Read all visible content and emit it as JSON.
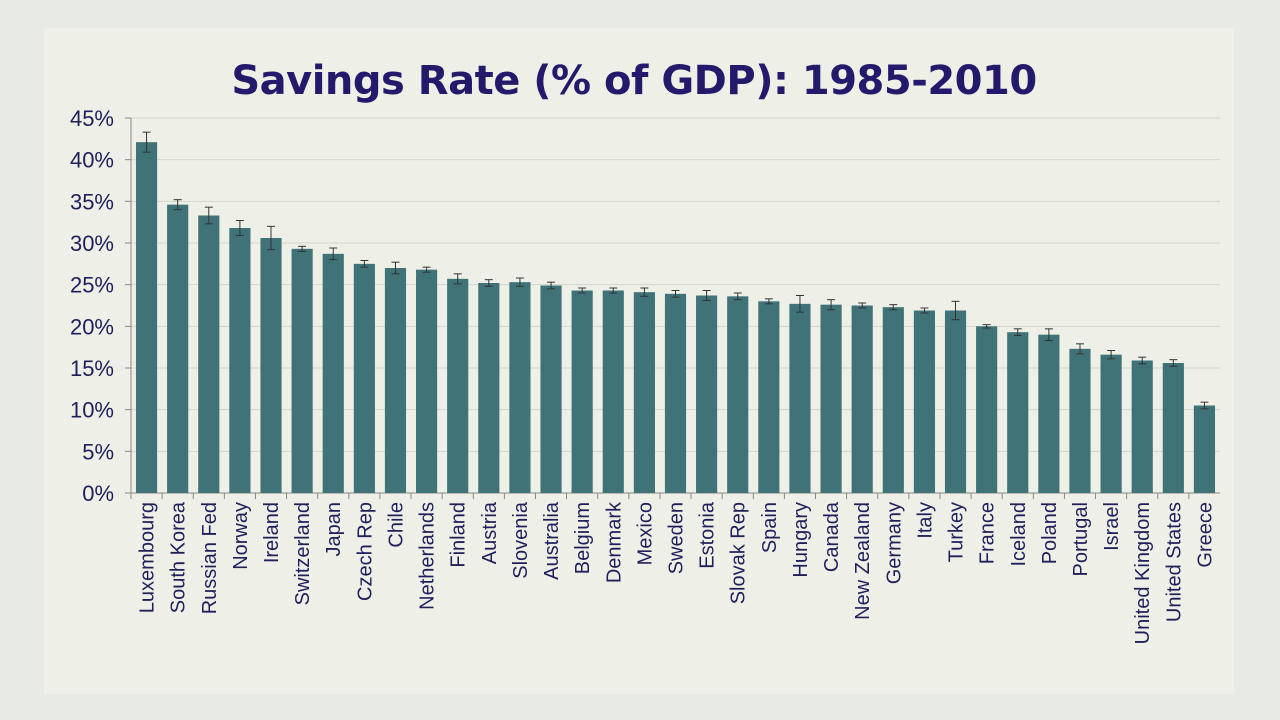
{
  "title": "Savings Rate (% of GDP): 1985-2010",
  "chart_data": {
    "type": "bar",
    "title": "Savings Rate (% of GDP): 1985-2010",
    "xlabel": "",
    "ylabel": "",
    "ylim": [
      0,
      45
    ],
    "yticks": [
      "0%",
      "5%",
      "10%",
      "15%",
      "20%",
      "25%",
      "30%",
      "35%",
      "40%",
      "45%"
    ],
    "grid": true,
    "legend": "none",
    "error_bars": true,
    "bar_color": "#3f7378",
    "categories": [
      "Luxembourg",
      "South Korea",
      "Russian Fed",
      "Norway",
      "Ireland",
      "Switzerland",
      "Japan",
      "Czech Rep",
      "Chile",
      "Netherlands",
      "Finland",
      "Austria",
      "Slovenia",
      "Australia",
      "Belgium",
      "Denmark",
      "Mexico",
      "Sweden",
      "Estonia",
      "Slovak Rep",
      "Spain",
      "Hungary",
      "Canada",
      "New Zealand",
      "Germany",
      "Italy",
      "Turkey",
      "France",
      "Iceland",
      "Poland",
      "Portugal",
      "Israel",
      "United Kingdom",
      "United States",
      "Greece"
    ],
    "values": [
      42.1,
      34.6,
      33.3,
      31.8,
      30.6,
      29.3,
      28.7,
      27.5,
      27.0,
      26.8,
      25.7,
      25.2,
      25.3,
      24.9,
      24.3,
      24.3,
      24.1,
      23.9,
      23.7,
      23.6,
      23.0,
      22.7,
      22.6,
      22.5,
      22.3,
      21.9,
      21.9,
      20.0,
      19.3,
      19.0,
      17.3,
      16.6,
      15.9,
      15.6,
      10.5
    ],
    "errors": [
      1.2,
      0.6,
      1.0,
      0.9,
      1.4,
      0.3,
      0.7,
      0.4,
      0.7,
      0.3,
      0.6,
      0.4,
      0.5,
      0.4,
      0.3,
      0.3,
      0.5,
      0.4,
      0.6,
      0.4,
      0.3,
      1.0,
      0.6,
      0.3,
      0.3,
      0.3,
      1.1,
      0.2,
      0.4,
      0.7,
      0.6,
      0.5,
      0.4,
      0.4,
      0.4
    ]
  }
}
